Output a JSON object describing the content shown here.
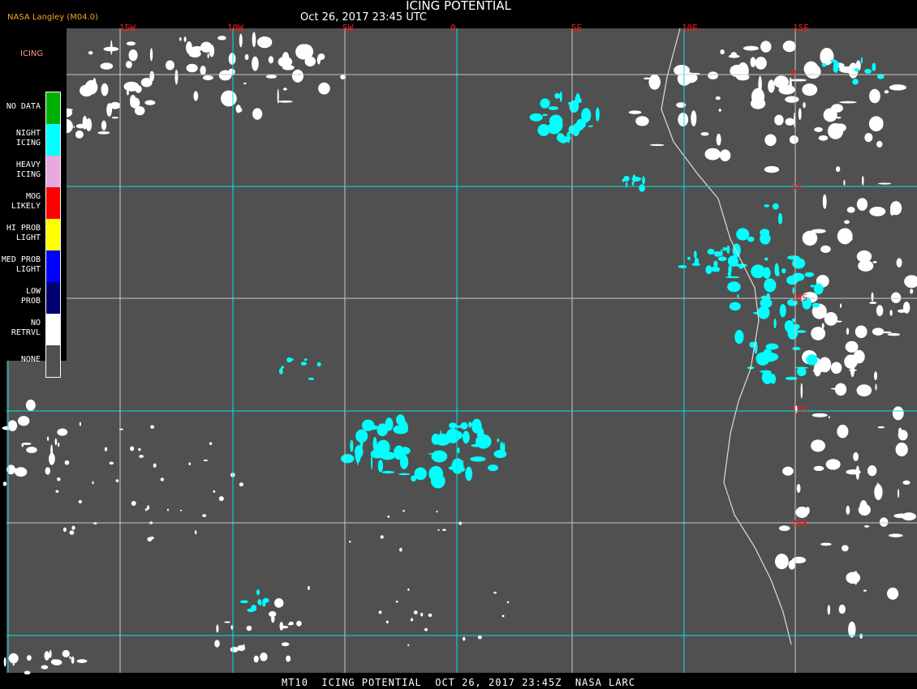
{
  "header": {
    "title": "ICING POTENTIAL",
    "datetime": "Oct 26, 2017 23:45 UTC",
    "source": "NASA Langley (M04.0)"
  },
  "longitude_labels": [
    "15W",
    "10W",
    "5W",
    "0",
    "5E",
    "10E",
    "15E"
  ],
  "latitude_labels": [
    "0",
    "5S",
    "10S",
    "15S",
    "20S"
  ],
  "legend": {
    "title": "ICING",
    "items": [
      {
        "label": "NO DATA",
        "color": "#00b000"
      },
      {
        "label": "NIGHT\nICING",
        "color": "#00ffff"
      },
      {
        "label": "HEAVY\nICING",
        "color": "#e8a8e0"
      },
      {
        "label": "MOG\nLIKELY",
        "color": "#ff0000"
      },
      {
        "label": "HI PROB\nLIGHT",
        "color": "#ffff00"
      },
      {
        "label": "MED PROB\nLIGHT",
        "color": "#0000ff"
      },
      {
        "label": "LOW\nPROB",
        "color": "#000070"
      },
      {
        "label": "NO\nRETRVL",
        "color": "#ffffff"
      },
      {
        "label": "NONE",
        "color": "#505050"
      }
    ]
  },
  "colors": {
    "background": "#505050",
    "cloud": "#ffffff",
    "icing": "#00ffff",
    "grid_primary": "#00e5ee",
    "grid_secondary": "#c8c8c8",
    "labels": "#ff1a1a"
  },
  "footer": "MT10  ICING POTENTIAL  OCT 26, 2017 23:45Z  NASA LARC"
}
